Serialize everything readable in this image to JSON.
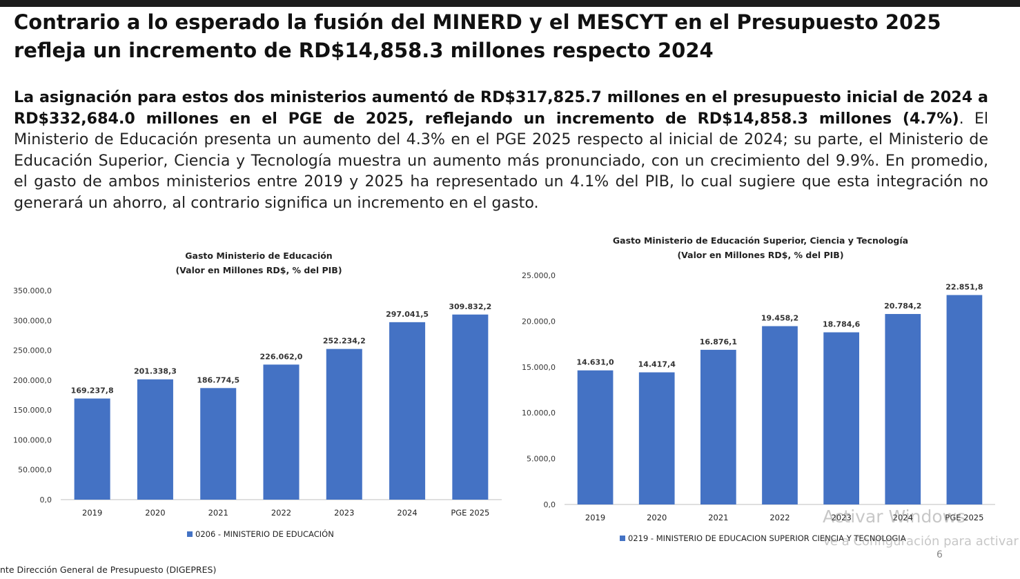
{
  "slide": {
    "title": "Contrario a lo esperado la fusión del MINERD y el MESCYT en el Presupuesto 2025 refleja un incremento de RD$14,858.3 millones respecto 2024",
    "paragraph_bold": "La asignación para estos dos ministerios aumentó de RD$317,825.7 millones en el presupuesto inicial de 2024 a RD$332,684.0 millones en el PGE de 2025, reflejando un incremento de RD$14,858.3 millones (4.7%)",
    "paragraph_rest": ". El Ministerio de Educación presenta un aumento del 4.3% en el PGE 2025 respecto al inicial de 2024; su parte, el Ministerio de Educación Superior, Ciencia y Tecnología muestra un aumento más pronunciado, con un crecimiento del 9.9%. En promedio, el gasto de ambos ministerios entre 2019 y 2025 ha representado un 4.1% del PIB, lo cual sugiere que esta integración no generará un ahorro, al contrario significa un incremento en el gasto.",
    "source": "nte Dirección General de Presupuesto (DIGEPRES)",
    "page_number": "6",
    "watermark_line1": "Activar Windows",
    "watermark_line2": "Ve a Configuración para activar"
  },
  "colors": {
    "bar": "#4472c4",
    "axis": "#bfbfbf",
    "text": "#222222"
  },
  "chart_data": [
    {
      "type": "bar",
      "title": "Gasto Ministerio de Educación",
      "subtitle": "(Valor en Millones RD$, % del PIB)",
      "categories": [
        "2019",
        "2020",
        "2021",
        "2022",
        "2023",
        "2024",
        "PGE 2025"
      ],
      "series": [
        {
          "name": "0206 - MINISTERIO DE EDUCACIÓN",
          "values": [
            169237.8,
            201338.3,
            186774.5,
            226062.0,
            252234.2,
            297041.5,
            309832.2
          ],
          "labels": [
            "169.237,8",
            "201.338,3",
            "186.774,5",
            "226.062,0",
            "252.234,2",
            "297.041,5",
            "309.832,2"
          ]
        }
      ],
      "ylim": [
        0,
        350000
      ],
      "yticks": [
        0,
        50000,
        100000,
        150000,
        200000,
        250000,
        300000,
        350000
      ],
      "ytick_labels": [
        "0,0",
        "50.000,0",
        "100.000,0",
        "150.000,0",
        "200.000,0",
        "250.000,0",
        "300.000,0",
        "350.000,0"
      ],
      "legend_position": "bottom",
      "grid": false
    },
    {
      "type": "bar",
      "title": "Gasto Ministerio de Educación Superior, Ciencia y Tecnología",
      "subtitle": "(Valor en Millones RD$, % del PIB)",
      "categories": [
        "2019",
        "2020",
        "2021",
        "2022",
        "2023",
        "2024",
        "PGE 2025"
      ],
      "series": [
        {
          "name": "0219 - MINISTERIO DE EDUCACION SUPERIOR CIENCIA Y TECNOLOGIA",
          "values": [
            14631.0,
            14417.4,
            16876.1,
            19458.2,
            18784.6,
            20784.2,
            22851.8
          ],
          "labels": [
            "14.631,0",
            "14.417,4",
            "16.876,1",
            "19.458,2",
            "18.784,6",
            "20.784,2",
            "22.851,8"
          ]
        }
      ],
      "ylim": [
        0,
        25000
      ],
      "yticks": [
        0,
        5000,
        10000,
        15000,
        20000,
        25000
      ],
      "ytick_labels": [
        "0,0",
        "5.000,0",
        "10.000,0",
        "15.000,0",
        "20.000,0",
        "25.000,0"
      ],
      "legend_position": "bottom",
      "grid": false
    }
  ]
}
